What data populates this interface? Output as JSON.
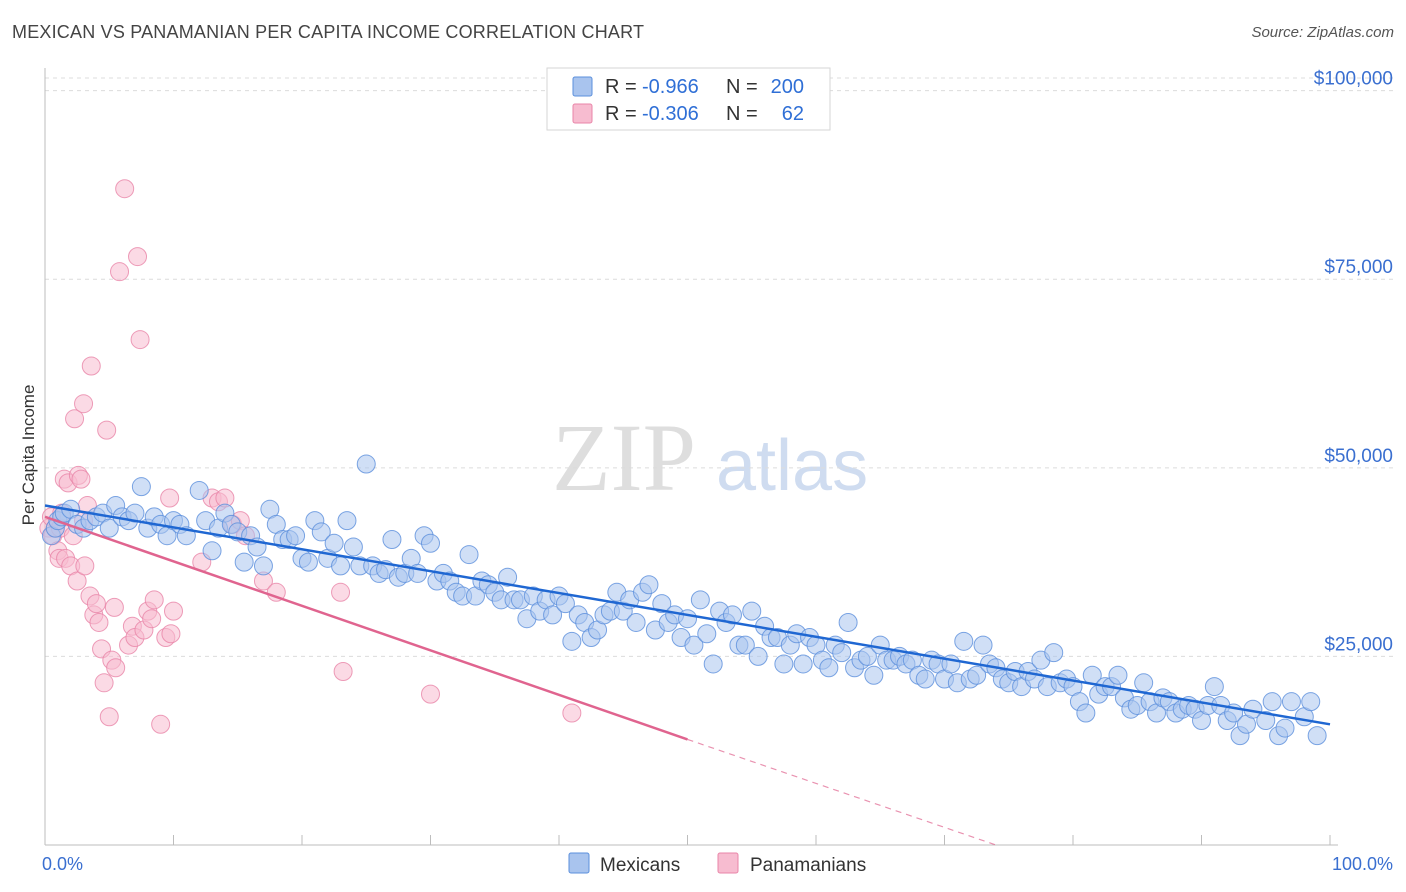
{
  "title": "MEXICAN VS PANAMANIAN PER CAPITA INCOME CORRELATION CHART",
  "source": "Source: ZipAtlas.com",
  "watermark": {
    "zip": "ZIP",
    "atlas": "atlas"
  },
  "colors": {
    "mexicans_fill": "#a9c4ee",
    "mexicans_stroke": "#5b8fdc",
    "mexicans_line": "#1f67d2",
    "panamanians_fill": "#f7bcd0",
    "panamanians_stroke": "#e985a8",
    "panamanians_line": "#e0648f",
    "tick_label": "#3a6fd0",
    "grid": "#dcdcdc"
  },
  "legend": {
    "rows": [
      {
        "r_label": "R =",
        "r_value": "-0.966",
        "n_label": "N =",
        "n_value": "200"
      },
      {
        "r_label": "R =",
        "r_value": "-0.306",
        "n_label": "N =",
        "n_value": "62"
      }
    ]
  },
  "bottom_legend": {
    "mexicans": "Mexicans",
    "panamanians": "Panamanians"
  },
  "chart_data": {
    "type": "scatter",
    "title": "MEXICAN VS PANAMANIAN PER CAPITA INCOME CORRELATION CHART",
    "xlabel": "",
    "ylabel": "Per Capita Income",
    "x_tick_labels": [
      "0.0%",
      "100.0%"
    ],
    "y_tick_labels": [
      "$25,000",
      "$50,000",
      "$75,000",
      "$100,000"
    ],
    "y_ticks": [
      25000,
      50000,
      75000,
      100000
    ],
    "xlim": [
      0,
      100
    ],
    "ylim": [
      0,
      103000
    ],
    "grid": true,
    "legend_position": "top-center",
    "series": [
      {
        "name": "Mexicans",
        "R": -0.966,
        "N": 200,
        "trend": {
          "x": [
            0,
            100
          ],
          "y": [
            45000,
            16000
          ]
        },
        "points": [
          [
            0.5,
            41000
          ],
          [
            0.8,
            42000
          ],
          [
            1,
            43000
          ],
          [
            1.3,
            43500
          ],
          [
            1.5,
            44000
          ],
          [
            2,
            44500
          ],
          [
            2.5,
            42500
          ],
          [
            3,
            42000
          ],
          [
            3.5,
            43000
          ],
          [
            4,
            43500
          ],
          [
            4.5,
            44000
          ],
          [
            5,
            42000
          ],
          [
            5.5,
            45000
          ],
          [
            6,
            43500
          ],
          [
            6.5,
            43000
          ],
          [
            7,
            44000
          ],
          [
            7.5,
            47500
          ],
          [
            8,
            42000
          ],
          [
            8.5,
            43500
          ],
          [
            9,
            42500
          ],
          [
            9.5,
            41000
          ],
          [
            10,
            43000
          ],
          [
            10.5,
            42500
          ],
          [
            11,
            41000
          ],
          [
            12,
            47000
          ],
          [
            12.5,
            43000
          ],
          [
            13,
            39000
          ],
          [
            13.5,
            42000
          ],
          [
            14,
            44000
          ],
          [
            14.5,
            42500
          ],
          [
            15,
            41500
          ],
          [
            15.5,
            37500
          ],
          [
            16,
            41000
          ],
          [
            16.5,
            39500
          ],
          [
            17,
            37000
          ],
          [
            17.5,
            44500
          ],
          [
            18,
            42500
          ],
          [
            18.5,
            40500
          ],
          [
            19,
            40500
          ],
          [
            19.5,
            41000
          ],
          [
            20,
            38000
          ],
          [
            20.5,
            37500
          ],
          [
            21,
            43000
          ],
          [
            21.5,
            41500
          ],
          [
            22,
            38000
          ],
          [
            22.5,
            40000
          ],
          [
            23,
            37000
          ],
          [
            23.5,
            43000
          ],
          [
            24,
            39500
          ],
          [
            24.5,
            37000
          ],
          [
            25,
            50500
          ],
          [
            25.5,
            37000
          ],
          [
            26,
            36000
          ],
          [
            26.5,
            36500
          ],
          [
            27,
            40500
          ],
          [
            27.5,
            35500
          ],
          [
            28,
            36000
          ],
          [
            28.5,
            38000
          ],
          [
            29,
            36000
          ],
          [
            29.5,
            41000
          ],
          [
            30,
            40000
          ],
          [
            30.5,
            35000
          ],
          [
            31,
            36000
          ],
          [
            31.5,
            35000
          ],
          [
            32,
            33500
          ],
          [
            32.5,
            33000
          ],
          [
            33,
            38500
          ],
          [
            33.5,
            33000
          ],
          [
            34,
            35000
          ],
          [
            34.5,
            34500
          ],
          [
            35,
            33500
          ],
          [
            35.5,
            32500
          ],
          [
            36,
            35500
          ],
          [
            36.5,
            32500
          ],
          [
            37,
            32500
          ],
          [
            37.5,
            30000
          ],
          [
            38,
            33000
          ],
          [
            38.5,
            31000
          ],
          [
            39,
            32500
          ],
          [
            39.5,
            30500
          ],
          [
            40,
            33000
          ],
          [
            40.5,
            32000
          ],
          [
            41,
            27000
          ],
          [
            41.5,
            30500
          ],
          [
            42,
            29500
          ],
          [
            42.5,
            27500
          ],
          [
            43,
            28500
          ],
          [
            43.5,
            30500
          ],
          [
            44,
            31000
          ],
          [
            44.5,
            33500
          ],
          [
            45,
            31000
          ],
          [
            45.5,
            32500
          ],
          [
            46,
            29500
          ],
          [
            46.5,
            33500
          ],
          [
            47,
            34500
          ],
          [
            47.5,
            28500
          ],
          [
            48,
            32000
          ],
          [
            48.5,
            29500
          ],
          [
            49,
            30500
          ],
          [
            49.5,
            27500
          ],
          [
            50,
            30000
          ],
          [
            50.5,
            26500
          ],
          [
            51,
            32500
          ],
          [
            51.5,
            28000
          ],
          [
            52,
            24000
          ],
          [
            52.5,
            31000
          ],
          [
            53,
            29500
          ],
          [
            53.5,
            30500
          ],
          [
            54,
            26500
          ],
          [
            54.5,
            26500
          ],
          [
            55,
            31000
          ],
          [
            55.5,
            25000
          ],
          [
            56,
            29000
          ],
          [
            56.5,
            27500
          ],
          [
            57,
            27500
          ],
          [
            57.5,
            24000
          ],
          [
            58,
            26500
          ],
          [
            58.5,
            28000
          ],
          [
            59,
            24000
          ],
          [
            59.5,
            27500
          ],
          [
            60,
            26500
          ],
          [
            60.5,
            24500
          ],
          [
            61,
            23500
          ],
          [
            61.5,
            26500
          ],
          [
            62,
            25500
          ],
          [
            62.5,
            29500
          ],
          [
            63,
            23500
          ],
          [
            63.5,
            24500
          ],
          [
            64,
            25000
          ],
          [
            64.5,
            22500
          ],
          [
            65,
            26500
          ],
          [
            65.5,
            24500
          ],
          [
            66,
            24500
          ],
          [
            66.5,
            25000
          ],
          [
            67,
            24000
          ],
          [
            67.5,
            24500
          ],
          [
            68,
            22500
          ],
          [
            68.5,
            22000
          ],
          [
            69,
            24500
          ],
          [
            69.5,
            24000
          ],
          [
            70,
            22000
          ],
          [
            70.5,
            24000
          ],
          [
            71,
            21500
          ],
          [
            71.5,
            27000
          ],
          [
            72,
            22000
          ],
          [
            72.5,
            22500
          ],
          [
            73,
            26500
          ],
          [
            73.5,
            24000
          ],
          [
            74,
            23500
          ],
          [
            74.5,
            22000
          ],
          [
            75,
            21500
          ],
          [
            75.5,
            23000
          ],
          [
            76,
            21000
          ],
          [
            76.5,
            23000
          ],
          [
            77,
            22000
          ],
          [
            77.5,
            24500
          ],
          [
            78,
            21000
          ],
          [
            78.5,
            25500
          ],
          [
            79,
            21500
          ],
          [
            79.5,
            22000
          ],
          [
            80,
            21000
          ],
          [
            80.5,
            19000
          ],
          [
            81,
            17500
          ],
          [
            81.5,
            22500
          ],
          [
            82,
            20000
          ],
          [
            82.5,
            21000
          ],
          [
            83,
            21000
          ],
          [
            83.5,
            22500
          ],
          [
            84,
            19500
          ],
          [
            84.5,
            18000
          ],
          [
            85,
            18500
          ],
          [
            85.5,
            21500
          ],
          [
            86,
            19000
          ],
          [
            86.5,
            17500
          ],
          [
            87,
            19500
          ],
          [
            87.5,
            19000
          ],
          [
            88,
            17500
          ],
          [
            88.5,
            18000
          ],
          [
            89,
            18500
          ],
          [
            89.5,
            18000
          ],
          [
            90,
            16500
          ],
          [
            90.5,
            18500
          ],
          [
            91,
            21000
          ],
          [
            91.5,
            18500
          ],
          [
            92,
            16500
          ],
          [
            92.5,
            17500
          ],
          [
            93,
            14500
          ],
          [
            93.5,
            16000
          ],
          [
            94,
            18000
          ],
          [
            95,
            16500
          ],
          [
            95.5,
            19000
          ],
          [
            96,
            14500
          ],
          [
            96.5,
            15500
          ],
          [
            97,
            19000
          ],
          [
            98,
            17000
          ],
          [
            98.5,
            19000
          ],
          [
            99,
            14500
          ]
        ]
      },
      {
        "name": "Panamanians",
        "R": -0.306,
        "N": 62,
        "trend": {
          "x": [
            0,
            50
          ],
          "y": [
            43500,
            14000
          ]
        },
        "trend_dashed": {
          "x": [
            50,
            74
          ],
          "y": [
            14000,
            0
          ]
        },
        "points": [
          [
            0.3,
            42000
          ],
          [
            0.5,
            43500
          ],
          [
            0.6,
            41000
          ],
          [
            0.8,
            42000
          ],
          [
            1,
            39000
          ],
          [
            1.1,
            38000
          ],
          [
            1.2,
            42000
          ],
          [
            1.3,
            44000
          ],
          [
            1.5,
            48500
          ],
          [
            1.6,
            38000
          ],
          [
            1.8,
            48000
          ],
          [
            2,
            37000
          ],
          [
            2.2,
            41000
          ],
          [
            2.3,
            56500
          ],
          [
            2.5,
            35000
          ],
          [
            2.6,
            49000
          ],
          [
            2.8,
            48500
          ],
          [
            3,
            58500
          ],
          [
            3.1,
            37000
          ],
          [
            3.3,
            45000
          ],
          [
            3.5,
            33000
          ],
          [
            3.6,
            63500
          ],
          [
            3.8,
            30500
          ],
          [
            4,
            32000
          ],
          [
            4.2,
            29500
          ],
          [
            4.4,
            26000
          ],
          [
            4.6,
            21500
          ],
          [
            4.8,
            55000
          ],
          [
            5,
            17000
          ],
          [
            5.2,
            24500
          ],
          [
            5.4,
            31500
          ],
          [
            5.5,
            23500
          ],
          [
            5.8,
            76000
          ],
          [
            6.2,
            87000
          ],
          [
            6.5,
            26500
          ],
          [
            6.8,
            29000
          ],
          [
            7,
            27500
          ],
          [
            7.2,
            78000
          ],
          [
            7.4,
            67000
          ],
          [
            7.7,
            28500
          ],
          [
            8,
            31000
          ],
          [
            8.3,
            30000
          ],
          [
            8.5,
            32500
          ],
          [
            9,
            16000
          ],
          [
            9.4,
            27500
          ],
          [
            9.8,
            28000
          ],
          [
            10,
            31000
          ],
          [
            9.7,
            46000
          ],
          [
            12.2,
            37500
          ],
          [
            13,
            46000
          ],
          [
            13.5,
            45500
          ],
          [
            14,
            46000
          ],
          [
            14.6,
            42500
          ],
          [
            15.2,
            43000
          ],
          [
            15.6,
            41000
          ],
          [
            17,
            35000
          ],
          [
            18,
            33500
          ],
          [
            23,
            33500
          ],
          [
            23.2,
            23000
          ],
          [
            30,
            20000
          ],
          [
            41,
            17500
          ],
          [
            3,
            43000
          ]
        ]
      }
    ]
  }
}
